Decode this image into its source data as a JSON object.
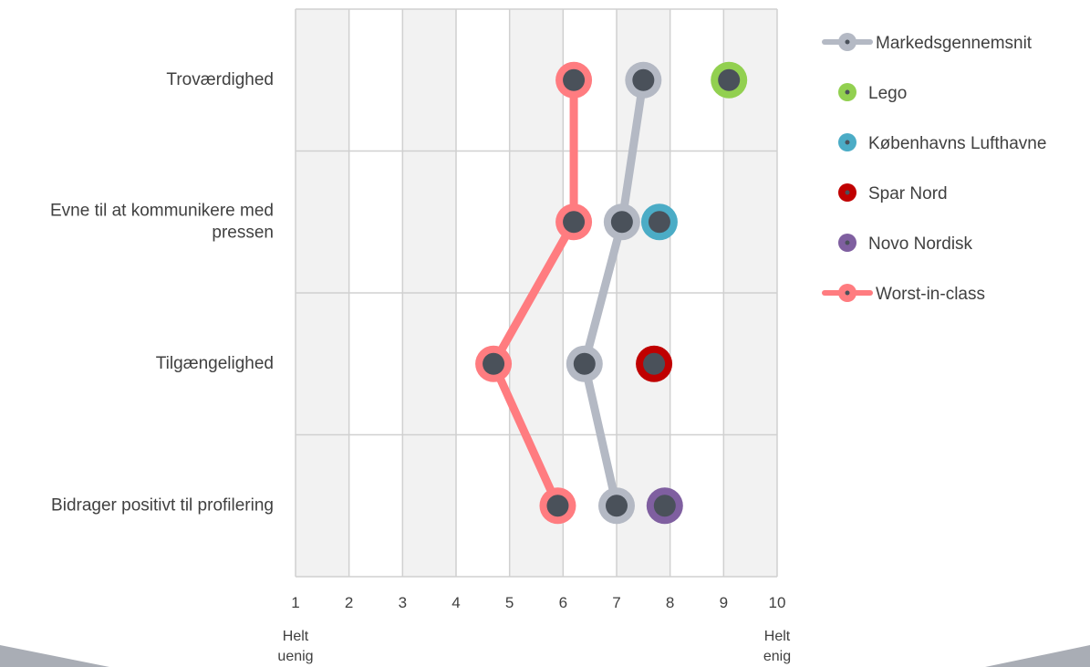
{
  "chart_data": {
    "type": "scatter",
    "orientation": "horizontal-dot-plot",
    "categories": [
      [
        "Troværdighed"
      ],
      [
        "Evne til at kommunikere med",
        "pressen"
      ],
      [
        "Tilgængelighed"
      ],
      [
        "Bidrager positivt til profilering"
      ]
    ],
    "xlim": [
      1,
      10
    ],
    "x_ticks": [
      "1",
      "2",
      "3",
      "4",
      "5",
      "6",
      "7",
      "8",
      "9",
      "10"
    ],
    "x_end_labels": {
      "left": [
        "Helt",
        "uenig"
      ],
      "right": [
        "Helt",
        "enig"
      ]
    },
    "grid": true,
    "legend_position": "right",
    "series": [
      {
        "name": "Markedsgennemsnit",
        "color": "#B4B9C4",
        "connected": true,
        "values": [
          7.5,
          7.1,
          6.4,
          7.0
        ]
      },
      {
        "name": "Lego",
        "color": "#92D050",
        "connected": false,
        "values": [
          9.1,
          null,
          null,
          null
        ]
      },
      {
        "name": "Københavns Lufthavne",
        "color": "#4BACC6",
        "connected": false,
        "values": [
          null,
          7.8,
          null,
          null
        ]
      },
      {
        "name": "Spar Nord",
        "color": "#C00000",
        "connected": false,
        "values": [
          null,
          null,
          7.7,
          null
        ]
      },
      {
        "name": "Novo Nordisk",
        "color": "#7F5FA0",
        "connected": false,
        "values": [
          null,
          null,
          null,
          7.9
        ]
      },
      {
        "name": "Worst-in-class",
        "color": "#FF7C80",
        "connected": true,
        "values": [
          6.2,
          6.2,
          4.7,
          5.9
        ]
      }
    ],
    "marker_center_color": "#4A515A"
  }
}
